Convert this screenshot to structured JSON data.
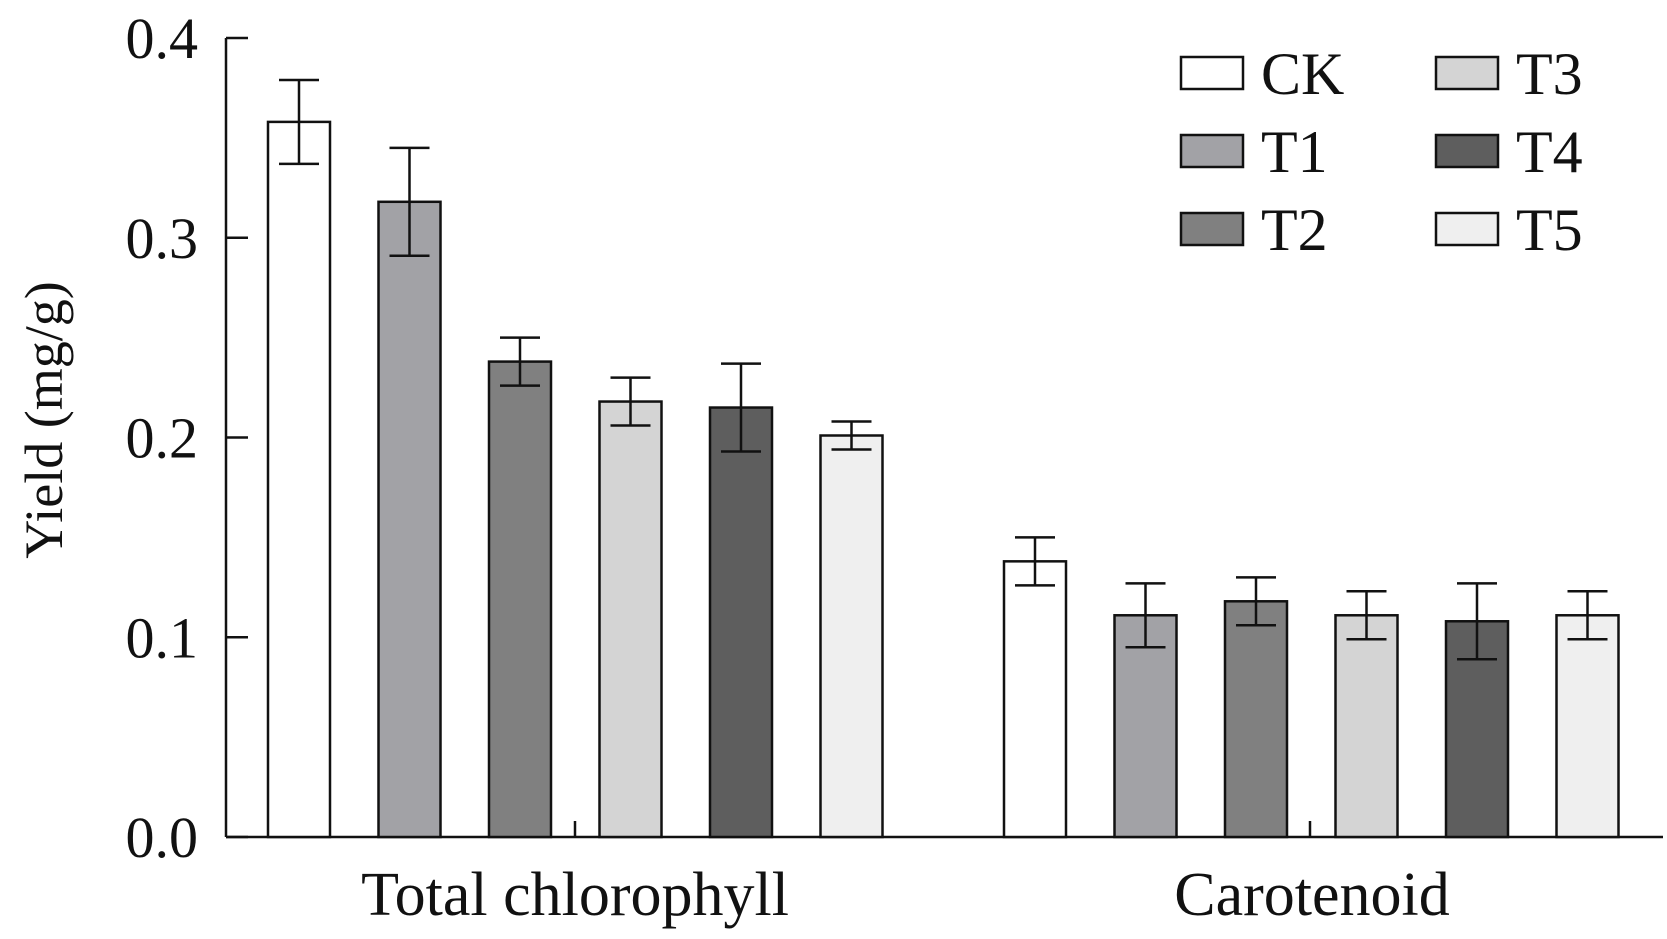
{
  "chart_data": {
    "type": "bar",
    "ylabel": "Yield (mg/g)",
    "ylim": [
      0,
      0.4
    ],
    "yticks": [
      {
        "value": 0.0,
        "label": "0.0"
      },
      {
        "value": 0.1,
        "label": "0.1"
      },
      {
        "value": 0.2,
        "label": "0.2"
      },
      {
        "value": 0.3,
        "label": "0.3"
      },
      {
        "value": 0.4,
        "label": "0.4"
      }
    ],
    "categories": [
      "Total chlorophyll",
      "Carotenoid"
    ],
    "series": [
      {
        "name": "CK",
        "color": "#ffffff",
        "values": [
          0.358,
          0.138
        ],
        "errors": [
          0.021,
          0.012
        ]
      },
      {
        "name": "T1",
        "color": "#a2a2a6",
        "values": [
          0.318,
          0.111
        ],
        "errors": [
          0.027,
          0.016
        ]
      },
      {
        "name": "T2",
        "color": "#808080",
        "values": [
          0.238,
          0.118
        ],
        "errors": [
          0.012,
          0.012
        ]
      },
      {
        "name": "T3",
        "color": "#d4d4d4",
        "values": [
          0.218,
          0.111
        ],
        "errors": [
          0.012,
          0.012
        ]
      },
      {
        "name": "T4",
        "color": "#5e5e5e",
        "values": [
          0.215,
          0.108
        ],
        "errors": [
          0.022,
          0.019
        ]
      },
      {
        "name": "T5",
        "color": "#efefef",
        "values": [
          0.201,
          0.111
        ],
        "errors": [
          0.007,
          0.012
        ]
      }
    ],
    "legend": {
      "position": "top-right",
      "columns": 2
    },
    "grid": false
  }
}
